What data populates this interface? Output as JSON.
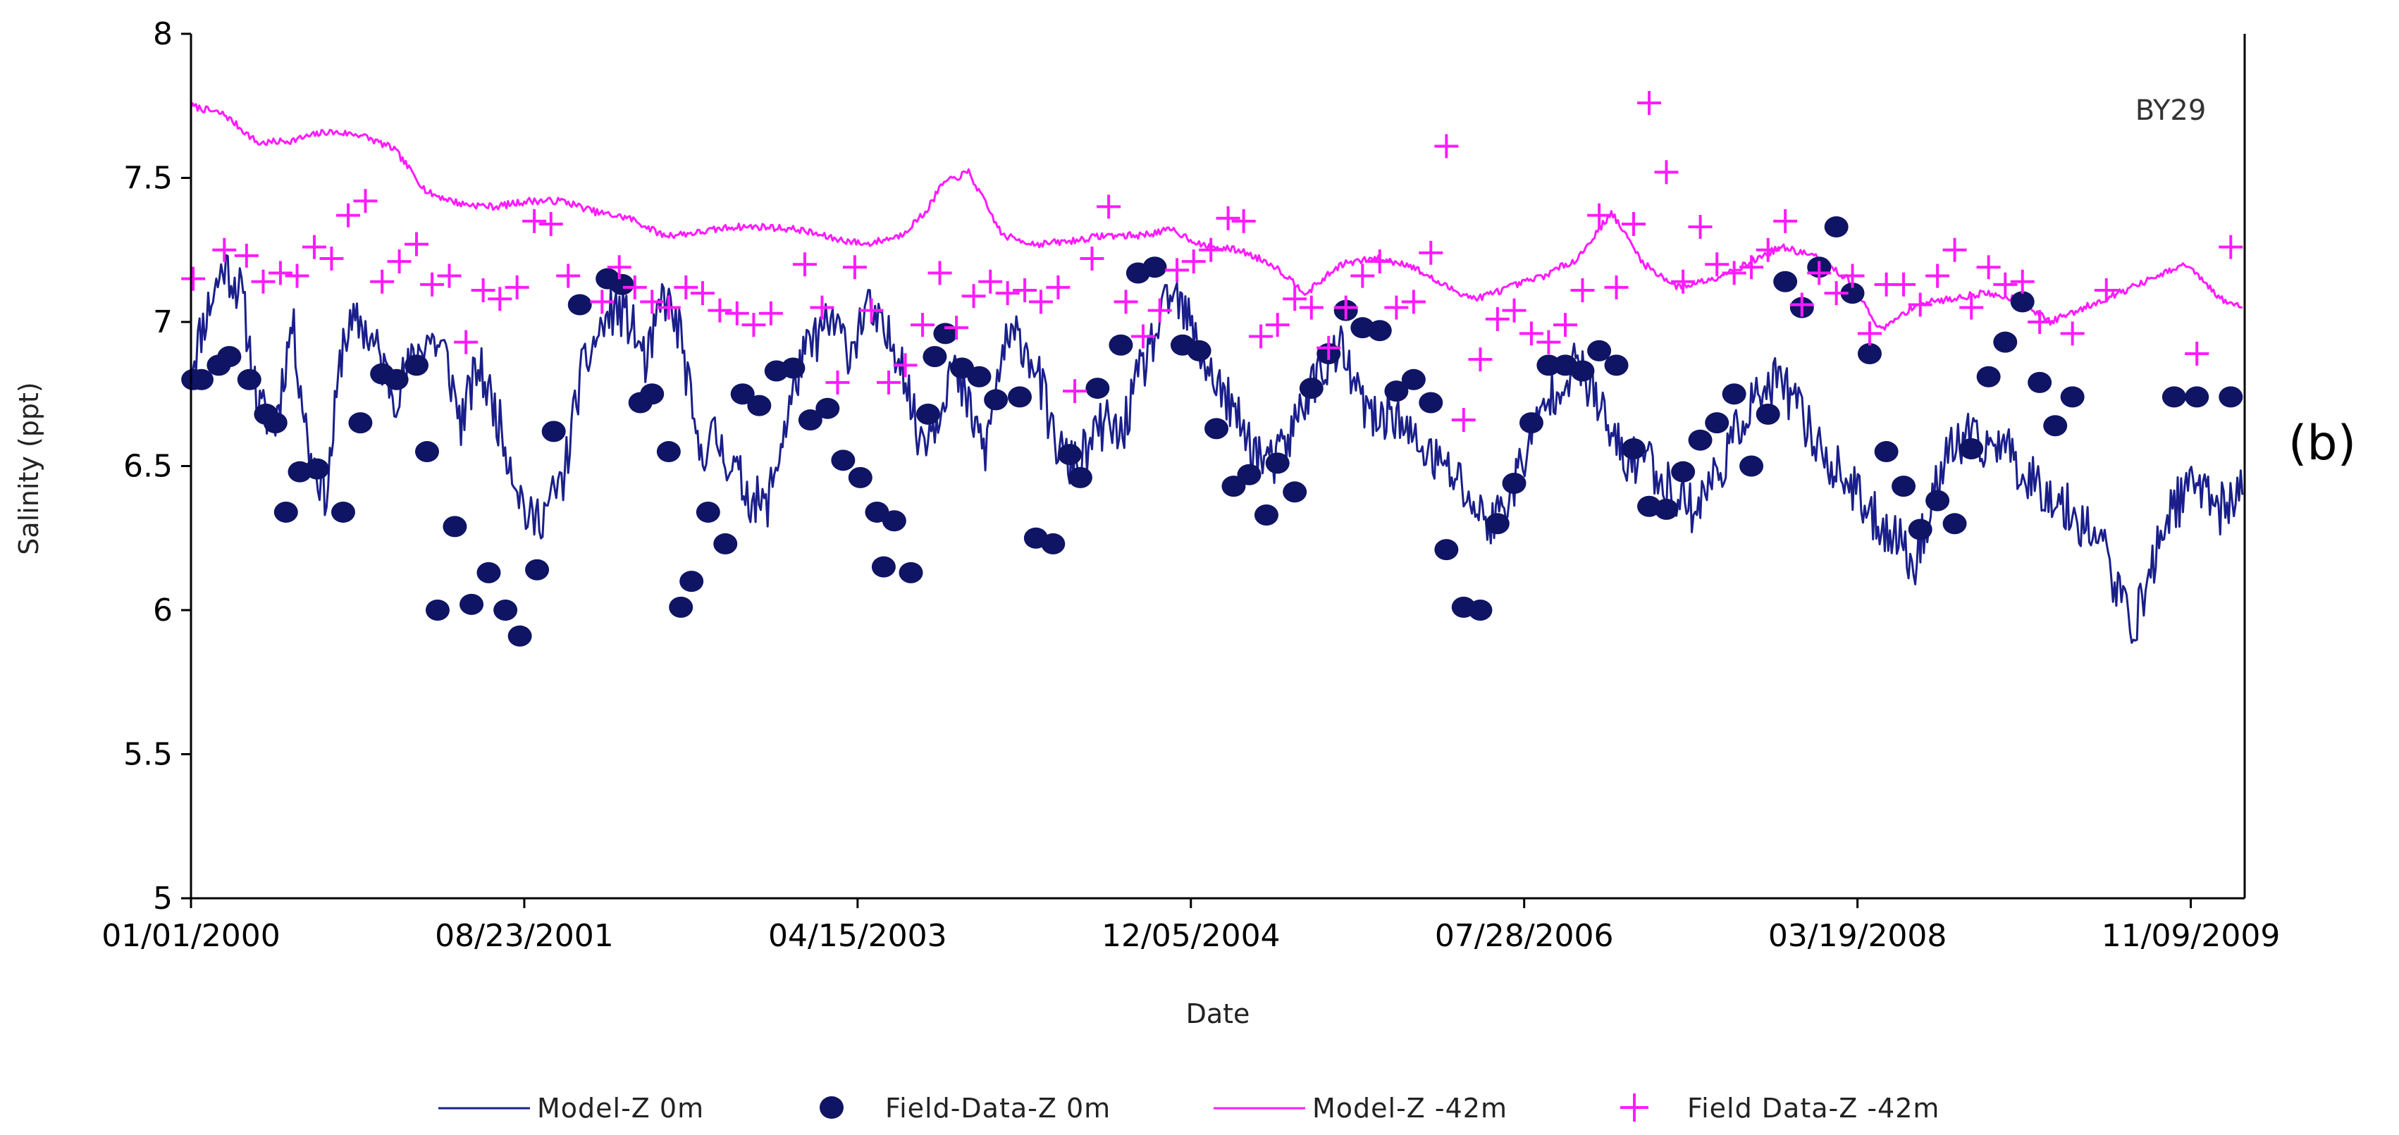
{
  "chart_data": {
    "type": "line",
    "panel_label": "(b)",
    "annotation": "BY29",
    "xlabel": "Date",
    "ylabel": "Salinity (ppt)",
    "xlim": [
      "2000-01-01",
      "2010-02-14"
    ],
    "ylim": [
      5,
      8
    ],
    "x_ticks": [
      "01/01/2000",
      "08/23/2001",
      "04/15/2003",
      "12/05/2004",
      "07/28/2006",
      "03/19/2008",
      "11/09/2009"
    ],
    "y_ticks": [
      "5",
      "5.5",
      "6",
      "6.5",
      "7",
      "7.5",
      "8"
    ],
    "grid": false,
    "legend_position": "bottom",
    "colors": {
      "model_0m": "#1a1f8a",
      "field_0m": "#0f1464",
      "model_42m": "#ff1aff",
      "field_42m": "#ff1aff"
    },
    "series": [
      {
        "name": "Model-Z 0m",
        "kind": "line",
        "x": [
          "2000-01-01",
          "2000-02-01",
          "2000-03-01",
          "2000-04-01",
          "2000-05-01",
          "2000-06-01",
          "2000-07-01",
          "2000-08-01",
          "2000-09-01",
          "2000-10-01",
          "2000-11-01",
          "2000-12-01",
          "2001-01-01",
          "2001-02-01",
          "2001-03-01",
          "2001-04-01",
          "2001-05-01",
          "2001-06-01",
          "2001-07-01",
          "2001-08-01",
          "2001-09-01",
          "2001-10-01",
          "2001-11-01",
          "2001-12-01",
          "2002-01-01",
          "2002-02-01",
          "2002-03-01",
          "2002-04-01",
          "2002-05-01",
          "2002-06-01",
          "2002-07-01",
          "2002-08-01",
          "2002-09-01",
          "2002-10-01",
          "2002-11-01",
          "2002-12-01",
          "2003-01-01",
          "2003-02-01",
          "2003-03-01",
          "2003-04-01",
          "2003-05-01",
          "2003-06-01",
          "2003-07-01",
          "2003-08-01",
          "2003-09-01",
          "2003-10-01",
          "2003-11-01",
          "2003-12-01",
          "2004-01-01",
          "2004-02-01",
          "2004-03-01",
          "2004-04-01",
          "2004-05-01",
          "2004-06-01",
          "2004-07-01",
          "2004-08-01",
          "2004-09-01",
          "2004-10-01",
          "2004-11-01",
          "2004-12-01",
          "2005-01-01",
          "2005-02-01",
          "2005-03-01",
          "2005-04-01",
          "2005-05-01",
          "2005-06-01",
          "2005-07-01",
          "2005-08-01",
          "2005-09-01",
          "2005-10-01",
          "2005-11-01",
          "2005-12-01",
          "2006-01-01",
          "2006-02-01",
          "2006-03-01",
          "2006-04-01",
          "2006-05-01",
          "2006-06-01",
          "2006-07-01",
          "2006-08-01",
          "2006-09-01",
          "2006-10-01",
          "2006-11-01",
          "2006-12-01",
          "2007-01-01",
          "2007-02-01",
          "2007-03-01",
          "2007-04-01",
          "2007-05-01",
          "2007-06-01",
          "2007-07-01",
          "2007-08-01",
          "2007-09-01",
          "2007-10-01",
          "2007-11-01",
          "2007-12-01",
          "2008-01-01",
          "2008-02-01",
          "2008-03-01",
          "2008-04-01",
          "2008-05-01",
          "2008-06-01",
          "2008-07-01",
          "2008-08-01",
          "2008-09-01",
          "2008-10-01",
          "2008-11-01",
          "2008-12-01",
          "2009-01-01",
          "2009-02-01",
          "2009-03-01",
          "2009-04-01",
          "2009-05-01",
          "2009-06-01",
          "2009-07-01",
          "2009-08-01",
          "2009-09-01",
          "2009-10-01",
          "2009-11-01",
          "2009-12-01",
          "2010-01-01",
          "2010-02-10"
        ],
        "y": [
          6.85,
          7.05,
          7.2,
          7.1,
          6.7,
          6.65,
          7.0,
          6.55,
          6.4,
          6.95,
          7.0,
          6.9,
          6.75,
          6.85,
          6.95,
          6.9,
          6.65,
          6.85,
          6.7,
          6.5,
          6.3,
          6.35,
          6.45,
          6.8,
          6.95,
          7.05,
          7.0,
          6.85,
          7.1,
          6.95,
          6.55,
          6.6,
          6.5,
          6.4,
          6.35,
          6.6,
          6.85,
          6.95,
          7.0,
          6.9,
          7.05,
          6.95,
          6.9,
          6.6,
          6.65,
          6.85,
          6.7,
          6.55,
          6.9,
          6.95,
          6.85,
          6.6,
          6.5,
          6.55,
          6.65,
          6.6,
          6.8,
          6.95,
          7.1,
          7.0,
          6.85,
          6.75,
          6.65,
          6.55,
          6.5,
          6.6,
          6.75,
          6.85,
          6.9,
          6.75,
          6.65,
          6.7,
          6.6,
          6.55,
          6.5,
          6.45,
          6.35,
          6.3,
          6.4,
          6.55,
          6.7,
          6.8,
          6.85,
          6.75,
          6.6,
          6.5,
          6.55,
          6.45,
          6.4,
          6.35,
          6.45,
          6.55,
          6.7,
          6.75,
          6.8,
          6.7,
          6.6,
          6.5,
          6.45,
          6.35,
          6.3,
          6.25,
          6.15,
          6.4,
          6.55,
          6.6,
          6.55,
          6.6,
          6.5,
          6.45,
          6.4,
          6.35,
          6.3,
          6.25,
          6.05,
          5.95,
          6.15,
          6.35,
          6.4,
          6.45,
          6.35,
          6.4
        ]
      },
      {
        "name": "Field-Data-Z 0m",
        "kind": "scatter",
        "marker": "circle",
        "x": [
          "2000-01-05",
          "2000-01-20",
          "2000-02-20",
          "2000-03-10",
          "2000-04-15",
          "2000-05-15",
          "2000-06-01",
          "2000-06-20",
          "2000-07-15",
          "2000-08-15",
          "2000-10-01",
          "2000-11-01",
          "2000-12-10",
          "2001-01-05",
          "2001-02-10",
          "2001-03-01",
          "2001-03-20",
          "2001-04-20",
          "2001-05-20",
          "2001-06-20",
          "2001-07-20",
          "2001-08-15",
          "2001-09-15",
          "2001-10-15",
          "2001-12-01",
          "2002-01-20",
          "2002-02-15",
          "2002-03-20",
          "2002-04-10",
          "2002-05-10",
          "2002-06-01",
          "2002-06-20",
          "2002-07-20",
          "2002-08-20",
          "2002-09-20",
          "2002-10-20",
          "2002-11-20",
          "2002-12-20",
          "2003-01-20",
          "2003-02-20",
          "2003-03-20",
          "2003-04-20",
          "2003-05-20",
          "2003-06-01",
          "2003-06-20",
          "2003-07-20",
          "2003-08-20",
          "2003-09-01",
          "2003-09-20",
          "2003-10-20",
          "2003-11-20",
          "2003-12-20",
          "2004-02-01",
          "2004-03-01",
          "2004-04-01",
          "2004-05-01",
          "2004-05-20",
          "2004-06-20",
          "2004-08-01",
          "2004-09-01",
          "2004-10-01",
          "2004-11-20",
          "2004-12-20",
          "2005-01-20",
          "2005-02-20",
          "2005-03-20",
          "2005-04-20",
          "2005-05-10",
          "2005-06-10",
          "2005-07-10",
          "2005-08-10",
          "2005-09-10",
          "2005-10-10",
          "2005-11-10",
          "2005-12-10",
          "2006-01-10",
          "2006-02-10",
          "2006-03-10",
          "2006-04-10",
          "2006-05-10",
          "2006-06-10",
          "2006-07-10",
          "2006-08-10",
          "2006-09-10",
          "2006-10-10",
          "2006-11-10",
          "2006-12-10",
          "2007-01-10",
          "2007-02-10",
          "2007-03-10",
          "2007-04-10",
          "2007-05-10",
          "2007-06-10",
          "2007-07-10",
          "2007-08-10",
          "2007-09-10",
          "2007-10-10",
          "2007-11-10",
          "2007-12-10",
          "2008-01-10",
          "2008-02-10",
          "2008-03-10",
          "2008-04-10",
          "2008-05-10",
          "2008-06-10",
          "2008-07-10",
          "2008-08-10",
          "2008-09-10",
          "2008-10-10",
          "2008-11-10",
          "2008-12-10",
          "2009-01-10",
          "2009-02-10",
          "2009-03-10",
          "2009-04-10",
          "2009-10-10",
          "2009-11-20",
          "2010-01-20"
        ],
        "y": [
          6.8,
          6.8,
          6.85,
          6.88,
          6.8,
          6.68,
          6.65,
          6.34,
          6.48,
          6.49,
          6.34,
          6.65,
          6.82,
          6.8,
          6.85,
          6.55,
          6.0,
          6.29,
          6.02,
          6.13,
          6.0,
          5.91,
          6.14,
          6.62,
          7.06,
          7.15,
          7.13,
          6.72,
          6.75,
          6.55,
          6.01,
          6.1,
          6.34,
          6.23,
          6.75,
          6.71,
          6.83,
          6.84,
          6.66,
          6.7,
          6.52,
          6.46,
          6.34,
          6.15,
          6.31,
          6.13,
          6.68,
          6.88,
          6.96,
          6.84,
          6.81,
          6.73,
          6.74,
          6.25,
          6.23,
          6.54,
          6.46,
          6.77,
          6.92,
          7.17,
          7.19,
          6.92,
          6.9,
          6.63,
          6.43,
          6.47,
          6.33,
          6.51,
          6.41,
          6.77,
          6.89,
          7.04,
          6.98,
          6.97,
          6.76,
          6.8,
          6.72,
          6.21,
          6.01,
          6.0,
          6.3,
          6.44,
          6.65,
          6.85,
          6.85,
          6.83,
          6.9,
          6.85,
          6.56,
          6.36,
          6.35,
          6.48,
          6.59,
          6.65,
          6.75,
          6.5,
          6.68,
          7.14,
          7.05,
          7.19,
          7.33,
          7.1,
          6.89,
          6.55,
          6.43,
          6.28,
          6.38,
          6.3,
          6.56,
          6.81,
          6.93,
          7.07,
          6.79,
          6.64,
          6.74,
          6.74,
          6.74,
          6.74
        ]
      },
      {
        "name": "Model-Z -42m",
        "kind": "line",
        "x": [
          "2000-01-01",
          "2000-03-01",
          "2000-05-01",
          "2000-07-01",
          "2000-09-01",
          "2000-11-01",
          "2001-01-01",
          "2001-03-01",
          "2001-05-01",
          "2001-07-01",
          "2001-09-01",
          "2001-11-01",
          "2002-01-01",
          "2002-03-01",
          "2002-05-01",
          "2002-07-01",
          "2002-09-01",
          "2002-11-01",
          "2003-01-01",
          "2003-03-01",
          "2003-05-01",
          "2003-07-01",
          "2003-08-15",
          "2003-09-15",
          "2003-11-01",
          "2004-01-01",
          "2004-03-01",
          "2004-05-01",
          "2004-07-01",
          "2004-09-01",
          "2004-11-01",
          "2005-01-01",
          "2005-03-01",
          "2005-05-01",
          "2005-07-01",
          "2005-09-01",
          "2005-11-01",
          "2006-01-01",
          "2006-03-01",
          "2006-05-01",
          "2006-07-01",
          "2006-09-01",
          "2006-11-01",
          "2007-01-01",
          "2007-03-01",
          "2007-05-01",
          "2007-07-01",
          "2007-09-01",
          "2007-11-01",
          "2008-01-01",
          "2008-03-01",
          "2008-05-01",
          "2008-07-01",
          "2008-09-01",
          "2008-11-01",
          "2009-01-01",
          "2009-03-01",
          "2009-05-01",
          "2009-07-01",
          "2009-09-01",
          "2009-11-01",
          "2010-01-01",
          "2010-02-10"
        ],
        "y": [
          7.75,
          7.72,
          7.62,
          7.63,
          7.66,
          7.65,
          7.6,
          7.45,
          7.41,
          7.4,
          7.42,
          7.42,
          7.38,
          7.36,
          7.3,
          7.31,
          7.33,
          7.33,
          7.32,
          7.29,
          7.27,
          7.3,
          7.38,
          7.48,
          7.52,
          7.3,
          7.27,
          7.28,
          7.3,
          7.3,
          7.32,
          7.26,
          7.25,
          7.2,
          7.1,
          7.2,
          7.22,
          7.2,
          7.13,
          7.08,
          7.12,
          7.16,
          7.22,
          7.38,
          7.2,
          7.12,
          7.15,
          7.2,
          7.26,
          7.23,
          7.15,
          6.97,
          7.06,
          7.08,
          7.1,
          7.08,
          7.0,
          7.05,
          7.1,
          7.15,
          7.2,
          7.08,
          7.05
        ]
      },
      {
        "name": "Field Data-Z -42m",
        "kind": "scatter",
        "marker": "plus",
        "x": [
          "2000-01-05",
          "2000-03-01",
          "2000-04-10",
          "2000-05-10",
          "2000-06-10",
          "2000-07-10",
          "2000-08-10",
          "2000-09-10",
          "2000-10-10",
          "2000-11-10",
          "2000-12-10",
          "2001-01-10",
          "2001-02-10",
          "2001-03-10",
          "2001-04-10",
          "2001-05-10",
          "2001-06-10",
          "2001-07-10",
          "2001-08-10",
          "2001-09-10",
          "2001-10-10",
          "2001-11-10",
          "2002-01-10",
          "2002-02-10",
          "2002-03-10",
          "2002-04-10",
          "2002-05-10",
          "2002-06-10",
          "2002-07-10",
          "2002-08-10",
          "2002-09-10",
          "2002-10-10",
          "2002-11-10",
          "2003-01-10",
          "2003-02-10",
          "2003-03-10",
          "2003-04-10",
          "2003-05-10",
          "2003-06-10",
          "2003-07-10",
          "2003-08-10",
          "2003-09-10",
          "2003-10-10",
          "2003-11-10",
          "2003-12-10",
          "2004-01-10",
          "2004-02-10",
          "2004-03-10",
          "2004-04-10",
          "2004-05-10",
          "2004-06-10",
          "2004-07-10",
          "2004-08-10",
          "2004-09-10",
          "2004-10-10",
          "2004-11-10",
          "2004-12-10",
          "2005-01-10",
          "2005-02-10",
          "2005-03-10",
          "2005-04-10",
          "2005-05-10",
          "2005-06-10",
          "2005-07-10",
          "2005-08-10",
          "2005-09-10",
          "2005-10-10",
          "2005-11-10",
          "2005-12-10",
          "2006-01-10",
          "2006-02-10",
          "2006-03-10",
          "2006-04-10",
          "2006-05-10",
          "2006-06-10",
          "2006-07-10",
          "2006-08-10",
          "2006-09-10",
          "2006-10-10",
          "2006-11-10",
          "2006-12-10",
          "2007-01-10",
          "2007-02-10",
          "2007-03-10",
          "2007-04-10",
          "2007-05-10",
          "2007-06-10",
          "2007-07-10",
          "2007-08-10",
          "2007-09-10",
          "2007-10-10",
          "2007-11-10",
          "2007-12-10",
          "2008-01-10",
          "2008-02-10",
          "2008-03-10",
          "2008-04-10",
          "2008-05-10",
          "2008-06-10",
          "2008-07-10",
          "2008-08-10",
          "2008-09-10",
          "2008-10-10",
          "2008-11-10",
          "2008-12-10",
          "2009-01-10",
          "2009-02-10",
          "2009-04-10",
          "2009-06-10",
          "2009-11-20",
          "2010-01-20"
        ],
        "y": [
          7.15,
          7.25,
          7.23,
          7.14,
          7.17,
          7.16,
          7.26,
          7.22,
          7.37,
          7.42,
          7.14,
          7.21,
          7.27,
          7.13,
          7.16,
          6.93,
          7.11,
          7.08,
          7.12,
          7.35,
          7.34,
          7.16,
          7.07,
          7.19,
          7.12,
          7.07,
          7.05,
          7.12,
          7.1,
          7.04,
          7.03,
          6.99,
          7.03,
          7.2,
          7.05,
          6.79,
          7.19,
          7.04,
          6.79,
          6.85,
          6.99,
          7.17,
          6.98,
          7.09,
          7.14,
          7.1,
          7.11,
          7.07,
          7.12,
          6.76,
          7.22,
          7.4,
          7.07,
          6.95,
          7.04,
          7.18,
          7.21,
          7.25,
          7.36,
          7.35,
          6.95,
          6.99,
          7.08,
          7.05,
          6.91,
          7.05,
          7.16,
          7.21,
          7.05,
          7.07,
          7.24,
          7.61,
          6.66,
          6.87,
          7.01,
          7.04,
          6.96,
          6.93,
          6.99,
          7.11,
          7.37,
          7.12,
          7.34,
          7.76,
          7.52,
          7.14,
          7.33,
          7.2,
          7.17,
          7.19,
          7.25,
          7.35,
          7.06,
          7.17,
          7.1,
          7.16,
          6.96,
          7.13,
          7.13,
          7.06,
          7.16,
          7.25,
          7.05,
          7.19,
          7.13,
          7.14,
          7.0,
          6.96,
          7.11,
          6.89,
          7.26
        ]
      }
    ]
  }
}
